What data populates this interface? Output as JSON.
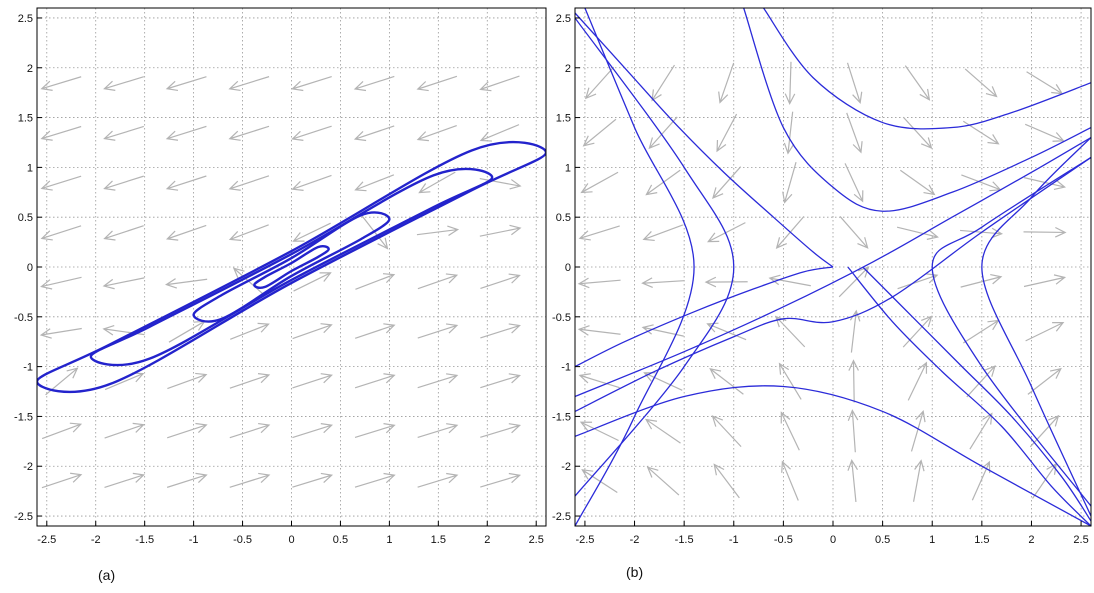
{
  "colors": {
    "trajectory": "#2b2bd9",
    "orbit": "#2323cc",
    "arrow": "#b4b4b4",
    "grid": "#999999"
  },
  "chart_data": [
    {
      "type": "line",
      "panel_label": "(a)",
      "xlim": [
        -2.6,
        2.6
      ],
      "ylim": [
        -2.6,
        2.6
      ],
      "xticks": [
        "-2.5",
        "-2",
        "-1.5",
        "-1",
        "-0.5",
        "0",
        "0.5",
        "1",
        "1.5",
        "2",
        "2.5"
      ],
      "yticks": [
        "2.5",
        "2",
        "1.5",
        "1",
        "0.5",
        "0",
        "-0.5",
        "-1",
        "-1.5",
        "-2",
        "-2.5"
      ],
      "xtick_values": [
        -2.5,
        -2,
        -1.5,
        -1,
        -0.5,
        0,
        0.5,
        1,
        1.5,
        2,
        2.5
      ],
      "ytick_values": [
        2.5,
        2,
        1.5,
        1,
        0.5,
        0,
        -0.5,
        -1,
        -1.5,
        -2,
        -2.5
      ],
      "grid": true,
      "vector_field": "center",
      "series": [
        {
          "x": [
            2.6,
            1.84,
            0,
            -1.84,
            -2.6,
            -1.84,
            0,
            1.84,
            2.6
          ],
          "y": [
            1.15,
            1.17,
            0.16,
            -0.77,
            -1.15,
            -1.17,
            -0.16,
            0.77,
            1.15
          ]
        },
        {
          "x": [
            2.05,
            1.45,
            0,
            -1.45,
            -2.05,
            -1.45,
            0,
            1.45,
            2.05
          ],
          "y": [
            0.9,
            0.92,
            0.13,
            -0.6,
            -0.9,
            -0.92,
            -0.13,
            0.6,
            0.9
          ]
        },
        {
          "x": [
            1.0,
            0.71,
            0,
            -0.71,
            -1.0,
            -0.71,
            0,
            0.71,
            1.0
          ],
          "y": [
            0.48,
            0.52,
            0.09,
            -0.28,
            -0.48,
            -0.52,
            -0.09,
            0.28,
            0.48
          ]
        },
        {
          "x": [
            0.38,
            0.27,
            0,
            -0.27,
            -0.38,
            -0.27,
            0,
            0.27,
            0.38
          ],
          "y": [
            0.18,
            0.2,
            0.04,
            -0.1,
            -0.18,
            -0.2,
            -0.04,
            0.1,
            0.18
          ]
        }
      ]
    },
    {
      "type": "line",
      "panel_label": "(b)",
      "xlim": [
        -2.6,
        2.6
      ],
      "ylim": [
        -2.6,
        2.6
      ],
      "xticks": [
        "-2.5",
        "-2",
        "-1.5",
        "-1",
        "-0.5",
        "0",
        "0.5",
        "1",
        "1.5",
        "2",
        "2.5"
      ],
      "yticks": [
        "2.5",
        "2",
        "1.5",
        "1",
        "0.5",
        "0",
        "-0.5",
        "-1",
        "-1.5",
        "-2",
        "-2.5"
      ],
      "xtick_values": [
        -2.5,
        -2,
        -1.5,
        -1,
        -0.5,
        0,
        0.5,
        1,
        1.5,
        2,
        2.5
      ],
      "ytick_values": [
        2.5,
        2,
        1.5,
        1,
        0.5,
        0,
        -0.5,
        -1,
        -1.5,
        -2,
        -2.5
      ],
      "grid": true,
      "vector_field": "saddle",
      "series": [
        {
          "x": [
            -0.7,
            -0.2,
            0.5,
            1.2,
            1.8,
            2.6
          ],
          "y": [
            2.6,
            1.9,
            1.45,
            1.4,
            1.55,
            1.85
          ]
        },
        {
          "x": [
            -0.9,
            -0.5,
            0,
            0.5,
            1.2,
            2.0,
            2.6
          ],
          "y": [
            2.6,
            1.4,
            0.8,
            0.56,
            0.75,
            1.1,
            1.4
          ]
        },
        {
          "x": [
            -2.6,
            -2.1,
            -1.4,
            -0.8,
            -0.3,
            0.0
          ],
          "y": [
            -1.0,
            -0.75,
            -0.45,
            -0.22,
            -0.05,
            0.0
          ]
        },
        {
          "x": [
            -2.6,
            -1.5,
            -0.5,
            0.4,
            1.2,
            2.0,
            2.6
          ],
          "y": [
            -1.3,
            -0.85,
            -0.4,
            0.05,
            0.5,
            0.95,
            1.3
          ]
        },
        {
          "x": [
            -2.6,
            -1.8,
            -1.0,
            -0.5,
            0.0,
            0.6,
            1.5,
            2.6
          ],
          "y": [
            -1.45,
            -1.05,
            -0.7,
            -0.52,
            -0.55,
            -0.3,
            0.35,
            1.1
          ]
        },
        {
          "x": [
            -2.6,
            -1.5,
            -0.5,
            0.5,
            1.5,
            2.6
          ],
          "y": [
            -1.7,
            -1.3,
            -1.2,
            -1.45,
            -2.0,
            -2.6
          ]
        },
        {
          "x": [
            -2.6,
            -2.1,
            -1.6,
            -1.1,
            -0.6,
            -0.2,
            0.0
          ],
          "y": [
            2.55,
            2.0,
            1.45,
            0.95,
            0.5,
            0.15,
            0.0
          ]
        },
        {
          "x": [
            -2.6,
            -1.5,
            -1.0,
            -1.5,
            -2.6
          ],
          "y": [
            2.5,
            1.0,
            0.0,
            -1.0,
            -2.3
          ]
        },
        {
          "x": [
            -2.5,
            -2.0,
            -1.4,
            -2.0,
            -2.6
          ],
          "y": [
            2.6,
            1.4,
            0.0,
            -1.5,
            -2.6
          ]
        },
        {
          "x": [
            0.15,
            0.6,
            1.1,
            1.7,
            2.2,
            2.6
          ],
          "y": [
            0.0,
            -0.55,
            -1.05,
            -1.6,
            -2.2,
            -2.6
          ]
        },
        {
          "x": [
            0.3,
            0.8,
            1.3,
            1.8,
            2.3,
            2.6
          ],
          "y": [
            0.0,
            -0.5,
            -1.0,
            -1.5,
            -2.1,
            -2.55
          ]
        },
        {
          "x": [
            2.6,
            1.5,
            1.0,
            1.5,
            2.6
          ],
          "y": [
            1.1,
            0.4,
            0.0,
            -1.0,
            -2.4
          ]
        },
        {
          "x": [
            2.6,
            2.0,
            1.5,
            2.0,
            2.6
          ],
          "y": [
            1.3,
            0.7,
            0.0,
            -1.2,
            -2.5
          ]
        }
      ]
    }
  ]
}
